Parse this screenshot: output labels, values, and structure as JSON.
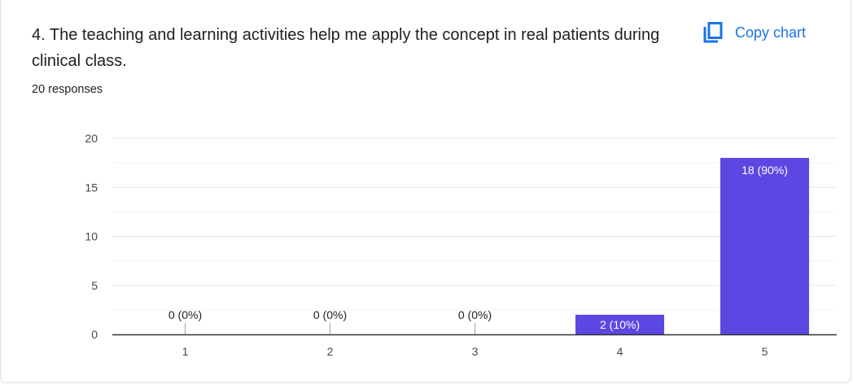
{
  "question": {
    "title": "4. The teaching and learning activities help me apply the concept in real patients during clinical class.",
    "responses": "20 responses"
  },
  "toolbar": {
    "copy_label": "Copy chart",
    "copy_icon": "copy-icon"
  },
  "colors": {
    "bar": "#5b48e3",
    "text": "#202124",
    "accent": "#1a73e8"
  },
  "chart_data": {
    "type": "bar",
    "categories": [
      "1",
      "2",
      "3",
      "4",
      "5"
    ],
    "values": [
      0,
      0,
      0,
      2,
      18
    ],
    "data_labels": [
      "0 (0%)",
      "0 (0%)",
      "0 (0%)",
      "2 (10%)",
      "18 (90%)"
    ],
    "yticks": [
      0,
      5,
      10,
      15,
      20
    ],
    "ylim": [
      0,
      20
    ],
    "title": "",
    "xlabel": "",
    "ylabel": "",
    "grid": true
  }
}
